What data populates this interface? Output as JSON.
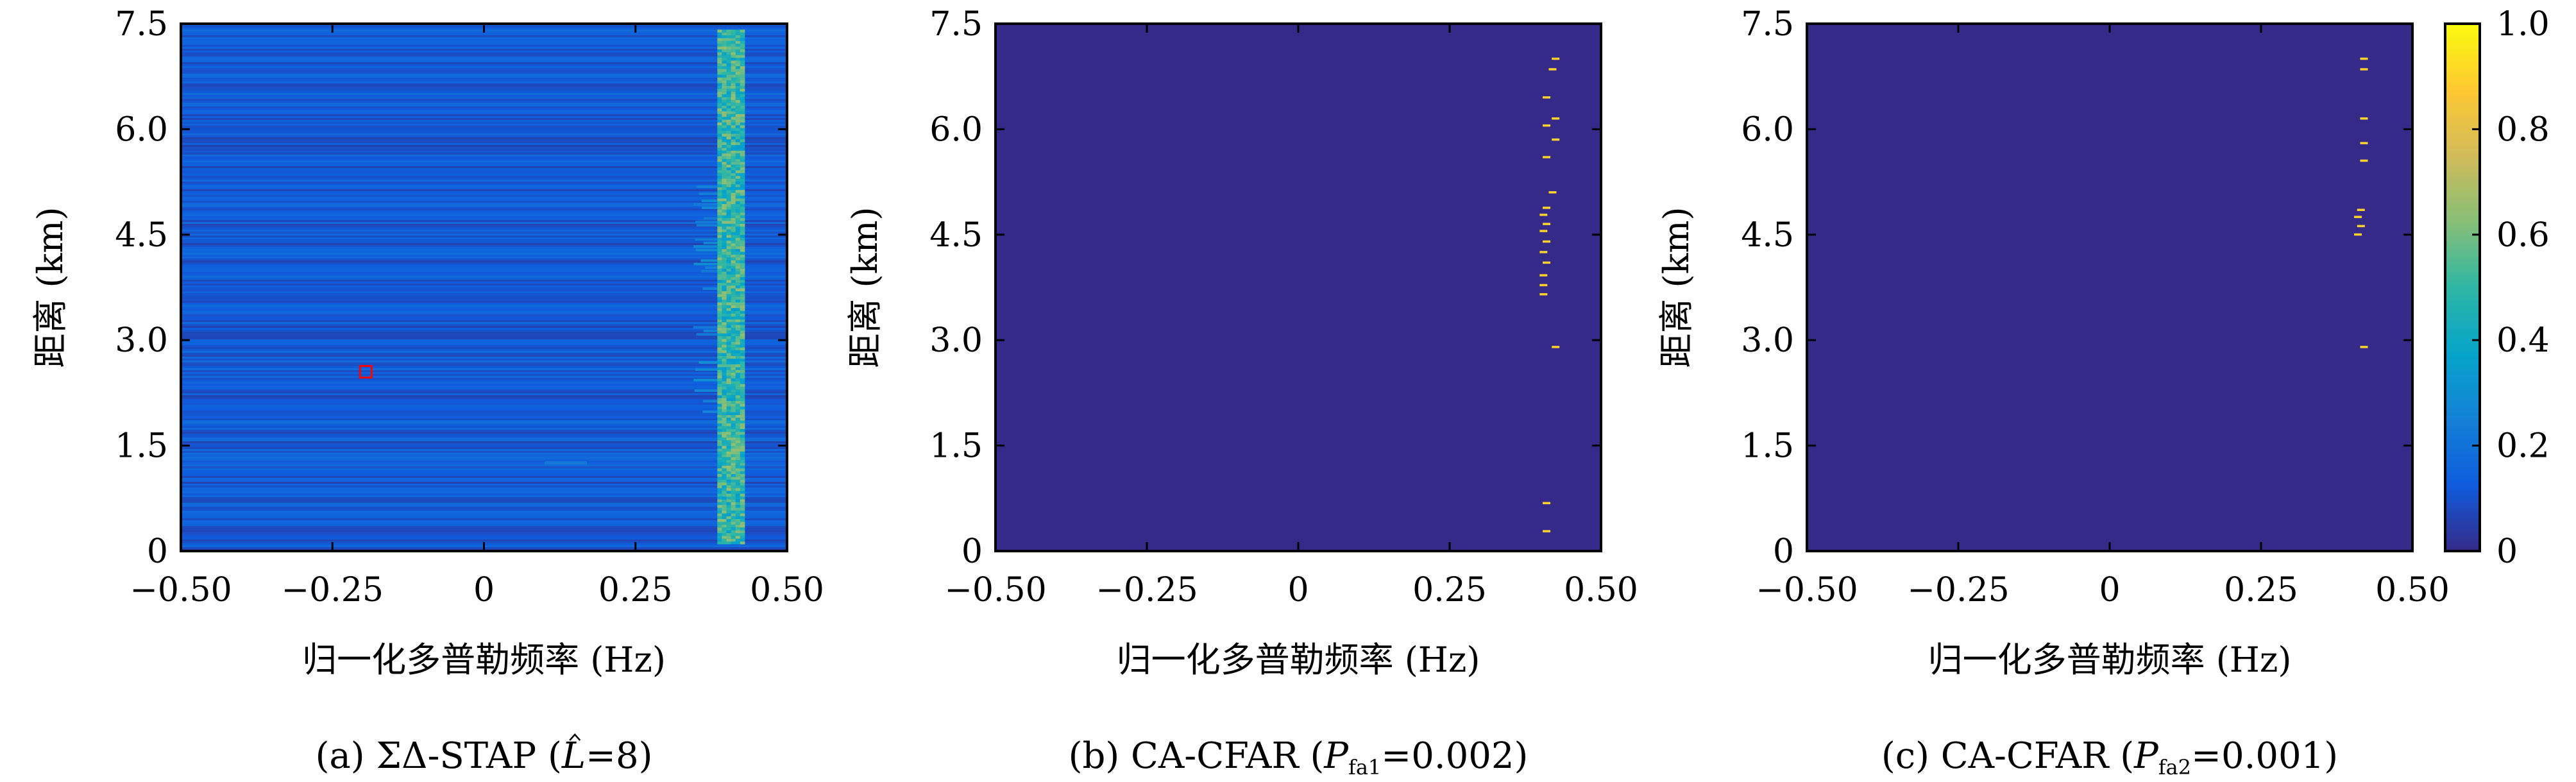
{
  "chart_data": [
    {
      "type": "heatmap",
      "caption": {
        "pre": "(a) ΣΔ-STAP (",
        "symbol": "L",
        "post": "=8)"
      },
      "xlabel": "归一化多普勒频率 (Hz)",
      "ylabel": "距离 (km)",
      "xlim": [
        -0.5,
        0.5
      ],
      "ylim": [
        0,
        7.5
      ],
      "xticks": [
        "−0.50",
        "−0.25",
        "0",
        "0.25",
        "0.50"
      ],
      "yticks": [
        "0",
        "1.5",
        "3.0",
        "4.5",
        "6.0",
        "7.5"
      ],
      "background_level": 0.12,
      "clutter_band": {
        "x_range": [
          0.385,
          0.43
        ],
        "y_range": [
          0.1,
          7.4
        ],
        "levels": [
          0.35,
          0.65
        ]
      },
      "faint_band": {
        "x_range": [
          0.345,
          0.385
        ],
        "y_range": [
          2.0,
          5.2
        ],
        "level": 0.22
      },
      "faint_streak": {
        "x_range": [
          0.1,
          0.17
        ],
        "y": 1.25,
        "level": 0.22
      },
      "marker": {
        "x": -0.195,
        "y": 2.55,
        "color": "#ff0000"
      }
    },
    {
      "type": "heatmap",
      "caption": {
        "pre": "(b) CA-CFAR (",
        "symbol": "P",
        "sub": "fa1",
        "post": "=0.002)"
      },
      "xlabel": "归一化多普勒频率 (Hz)",
      "ylabel": "距离 (km)",
      "xlim": [
        -0.5,
        0.5
      ],
      "ylim": [
        0,
        7.5
      ],
      "xticks": [
        "−0.50",
        "−0.25",
        "0",
        "0.25",
        "0.50"
      ],
      "yticks": [
        "0",
        "1.5",
        "3.0",
        "4.5",
        "6.0",
        "7.5"
      ],
      "background_level": 0.0,
      "detections": [
        {
          "x": 0.41,
          "y": 0.28
        },
        {
          "x": 0.41,
          "y": 0.68
        },
        {
          "x": 0.425,
          "y": 2.9
        },
        {
          "x": 0.405,
          "y": 3.65
        },
        {
          "x": 0.405,
          "y": 3.78
        },
        {
          "x": 0.405,
          "y": 3.92
        },
        {
          "x": 0.41,
          "y": 4.1
        },
        {
          "x": 0.405,
          "y": 4.25
        },
        {
          "x": 0.41,
          "y": 4.4
        },
        {
          "x": 0.405,
          "y": 4.55
        },
        {
          "x": 0.41,
          "y": 4.65
        },
        {
          "x": 0.405,
          "y": 4.78
        },
        {
          "x": 0.41,
          "y": 4.88
        },
        {
          "x": 0.42,
          "y": 5.1
        },
        {
          "x": 0.41,
          "y": 5.6
        },
        {
          "x": 0.425,
          "y": 5.85
        },
        {
          "x": 0.41,
          "y": 6.05
        },
        {
          "x": 0.425,
          "y": 6.15
        },
        {
          "x": 0.41,
          "y": 6.45
        },
        {
          "x": 0.42,
          "y": 6.85
        },
        {
          "x": 0.425,
          "y": 7.0
        }
      ]
    },
    {
      "type": "heatmap",
      "caption": {
        "pre": "(c) CA-CFAR (",
        "symbol": "P",
        "sub": "fa2",
        "post": "=0.001)"
      },
      "xlabel": "归一化多普勒频率 (Hz)",
      "ylabel": "距离 (km)",
      "xlim": [
        -0.5,
        0.5
      ],
      "ylim": [
        0,
        7.5
      ],
      "xticks": [
        "−0.50",
        "−0.25",
        "0",
        "0.25",
        "0.50"
      ],
      "yticks": [
        "0",
        "1.5",
        "3.0",
        "4.5",
        "6.0",
        "7.5"
      ],
      "background_level": 0.0,
      "detections": [
        {
          "x": 0.42,
          "y": 2.9
        },
        {
          "x": 0.41,
          "y": 4.5
        },
        {
          "x": 0.415,
          "y": 4.62
        },
        {
          "x": 0.41,
          "y": 4.75
        },
        {
          "x": 0.415,
          "y": 4.85
        },
        {
          "x": 0.42,
          "y": 5.55
        },
        {
          "x": 0.42,
          "y": 5.8
        },
        {
          "x": 0.42,
          "y": 6.15
        },
        {
          "x": 0.42,
          "y": 6.85
        },
        {
          "x": 0.42,
          "y": 7.0
        }
      ],
      "colorbar": {
        "range": [
          0,
          1
        ],
        "ticks": [
          "0",
          "0.2",
          "0.4",
          "0.6",
          "0.8",
          "1.0"
        ],
        "colormap": "parula",
        "stops": [
          "#352a87",
          "#0f5cdd",
          "#1481d6",
          "#06a4ca",
          "#2eb7a4",
          "#87bf77",
          "#d1bb59",
          "#fec832",
          "#f9fb0e"
        ]
      }
    }
  ]
}
